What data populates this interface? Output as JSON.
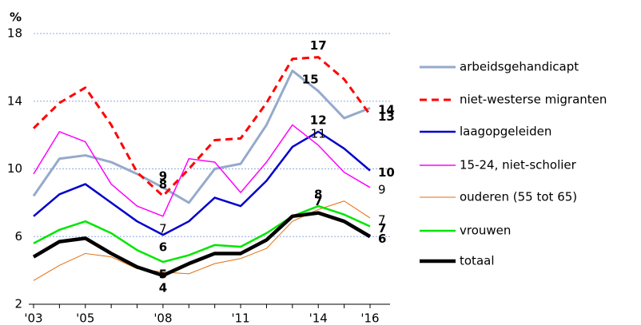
{
  "chart_data": {
    "type": "line",
    "y_unit": "%",
    "x": [
      2003,
      2004,
      2005,
      2006,
      2007,
      2008,
      2009,
      2010,
      2011,
      2012,
      2013,
      2014,
      2015,
      2016
    ],
    "xlim": [
      2003,
      2016
    ],
    "xticks": [
      {
        "value": 2003,
        "label": "'03"
      },
      {
        "value": 2005,
        "label": "'05"
      },
      {
        "value": 2008,
        "label": "'08"
      },
      {
        "value": 2011,
        "label": "'11"
      },
      {
        "value": 2014,
        "label": "'14"
      },
      {
        "value": 2016,
        "label": "'16"
      }
    ],
    "ylim": [
      2,
      18
    ],
    "yticks": [
      2,
      6,
      10,
      14,
      18
    ],
    "grid": true,
    "series": [
      {
        "name": "arbeidsgehandicapt",
        "color": "#95aacb",
        "label_color": "#a6a6a6",
        "values": [
          8.4,
          10.6,
          10.8,
          10.4,
          9.7,
          8.9,
          8.0,
          10.0,
          10.3,
          12.6,
          15.8,
          14.6,
          13.0,
          13.6
        ],
        "value_labels": [
          null,
          null,
          null,
          null,
          null,
          "9",
          null,
          null,
          null,
          null,
          null,
          "15",
          null,
          "14"
        ]
      },
      {
        "name": "niet-westerse migranten",
        "color": "#ff0000",
        "label_color": "#ff0000",
        "dashed": true,
        "values": [
          12.4,
          13.9,
          14.8,
          12.6,
          9.8,
          8.4,
          10.0,
          11.7,
          11.8,
          13.9,
          16.5,
          16.6,
          15.3,
          13.2
        ],
        "value_labels": [
          null,
          null,
          null,
          null,
          null,
          "8",
          null,
          null,
          null,
          null,
          null,
          "17",
          null,
          "13"
        ]
      },
      {
        "name": "laagopgeleiden",
        "color": "#0000cc",
        "label_color": "#0000cc",
        "values": [
          7.2,
          8.5,
          9.1,
          8.0,
          6.9,
          6.1,
          6.9,
          8.3,
          7.8,
          9.3,
          11.3,
          12.2,
          11.2,
          9.9
        ],
        "value_labels": [
          null,
          null,
          null,
          null,
          null,
          "6",
          null,
          null,
          null,
          null,
          null,
          "12",
          null,
          "10"
        ]
      },
      {
        "name": "15-24, niet-scholier",
        "color": "#ff00ff",
        "label_color": "#ff00ff",
        "values": [
          9.7,
          12.2,
          11.6,
          9.1,
          7.8,
          7.2,
          10.6,
          10.4,
          8.6,
          10.4,
          12.6,
          11.4,
          9.8,
          8.9
        ],
        "value_labels": [
          null,
          null,
          null,
          null,
          null,
          "7",
          null,
          null,
          null,
          null,
          null,
          "11",
          null,
          "9"
        ]
      },
      {
        "name": "ouderen (55 tot 65)",
        "color": "#e46c0a",
        "label_color": "#e46c0a",
        "values": [
          3.4,
          4.3,
          5.0,
          4.8,
          4.1,
          3.9,
          3.8,
          4.4,
          4.7,
          5.3,
          6.9,
          7.6,
          8.1,
          7.1
        ],
        "value_labels": [
          null,
          null,
          null,
          null,
          null,
          null,
          null,
          null,
          null,
          null,
          null,
          null,
          null,
          "7"
        ]
      },
      {
        "name": "vrouwen",
        "color": "#00e600",
        "label_color": "#2e9e5a",
        "values": [
          5.6,
          6.4,
          6.9,
          6.2,
          5.2,
          4.5,
          4.9,
          5.5,
          5.4,
          6.2,
          7.2,
          7.8,
          7.3,
          6.6
        ],
        "value_labels": [
          null,
          null,
          null,
          null,
          null,
          "5",
          null,
          null,
          null,
          null,
          null,
          "8",
          null,
          "7"
        ]
      },
      {
        "name": "totaal",
        "color": "#000000",
        "label_color": "#000000",
        "values": [
          4.8,
          5.7,
          5.9,
          5.0,
          4.2,
          3.7,
          4.4,
          5.0,
          5.0,
          5.8,
          7.2,
          7.4,
          6.9,
          6.0
        ],
        "value_labels": [
          null,
          null,
          null,
          null,
          null,
          "4",
          null,
          null,
          null,
          null,
          null,
          "7",
          null,
          "6"
        ]
      }
    ]
  }
}
